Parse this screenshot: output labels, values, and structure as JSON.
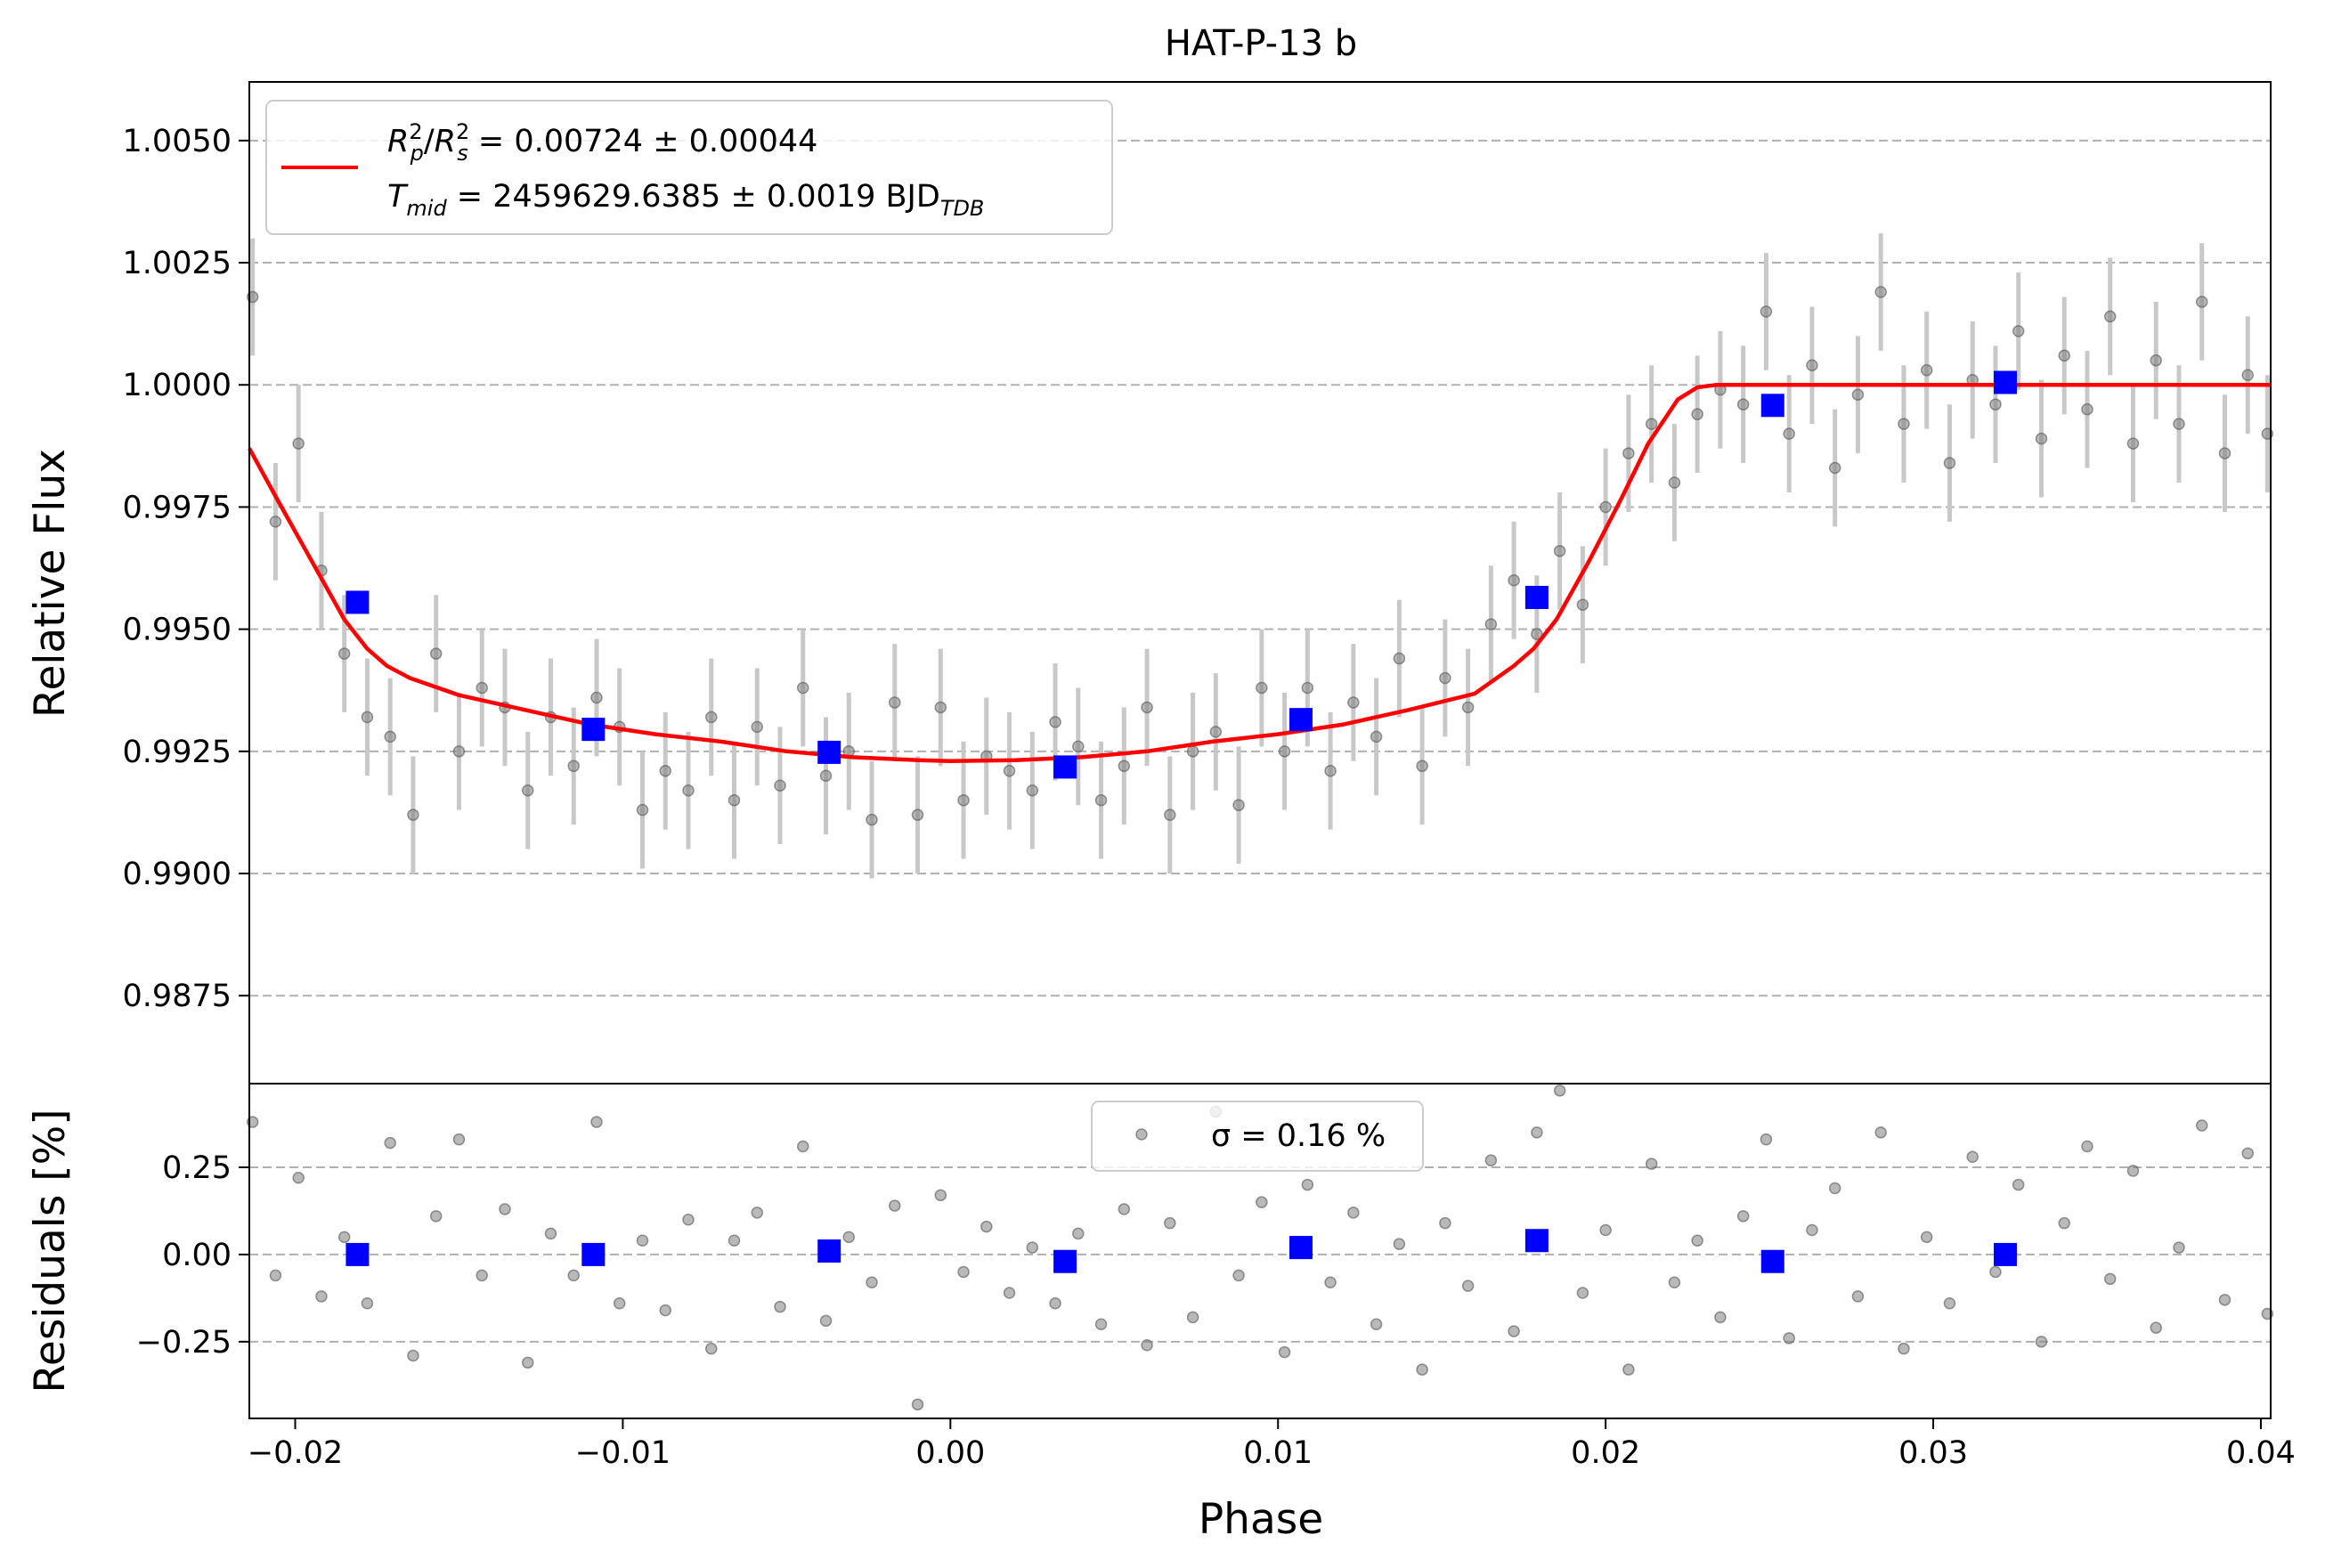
{
  "chart_data": [
    {
      "panel": "light-curve",
      "type": "scatter",
      "title": "HAT-P-13 b",
      "xlabel": "",
      "ylabel": "Relative Flux",
      "xlim": [
        -0.0214,
        0.0403
      ],
      "ylim": [
        0.9857,
        1.0062
      ],
      "grid": "horizontal-dashed",
      "legend_position": "top-left",
      "x_ticks": [
        "−0.02",
        "−0.01",
        "0.00",
        "0.01",
        "0.02",
        "0.03",
        "0.04"
      ],
      "x_tick_values": [
        -0.02,
        -0.01,
        0.0,
        0.01,
        0.02,
        0.03,
        0.04
      ],
      "y_ticks": [
        "0.9875",
        "0.9900",
        "0.9925",
        "0.9950",
        "0.9975",
        "1.0000",
        "1.0025",
        "1.0050"
      ],
      "y_tick_values": [
        0.9875,
        0.99,
        0.9925,
        0.995,
        0.9975,
        1.0,
        1.0025,
        1.005
      ],
      "legend": {
        "line1_parts": [
          {
            "t": "R",
            "style": "italic"
          },
          {
            "t": "2",
            "style": "sup"
          },
          {
            "t": "p",
            "style": "sub"
          },
          {
            "t": "/",
            "style": "normal"
          },
          {
            "t": "R",
            "style": "italic"
          },
          {
            "t": "2",
            "style": "sup"
          },
          {
            "t": "s",
            "style": "sub"
          },
          {
            "t": " = 0.00724 ± 0.00044",
            "style": "normal"
          }
        ],
        "line2_parts": [
          {
            "t": "T",
            "style": "italic"
          },
          {
            "t": "mid",
            "style": "sub"
          },
          {
            "t": " = 2459629.6385 ± 0.0019 BJD",
            "style": "normal"
          },
          {
            "t": "TDB",
            "style": "sub"
          }
        ]
      },
      "series": [
        {
          "name": "model",
          "kind": "line",
          "color": "#ff0000",
          "x": [
            -0.0214,
            -0.0205,
            -0.0195,
            -0.0185,
            -0.0178,
            -0.0172,
            -0.0165,
            -0.015,
            -0.013,
            -0.011,
            -0.009,
            -0.007,
            -0.005,
            -0.003,
            -0.001,
            0.0,
            0.002,
            0.004,
            0.006,
            0.008,
            0.01,
            0.012,
            0.014,
            0.016,
            0.0172,
            0.0178,
            0.0185,
            0.0195,
            0.0205,
            0.0213,
            0.0222,
            0.0228,
            0.0234,
            0.0245,
            0.03,
            0.0403
          ],
          "y": [
            0.9987,
            0.9976,
            0.9964,
            0.9952,
            0.9946,
            0.99425,
            0.994,
            0.99365,
            0.99335,
            0.99305,
            0.99285,
            0.9927,
            0.9925,
            0.99238,
            0.99232,
            0.9923,
            0.99232,
            0.99238,
            0.9925,
            0.9927,
            0.99285,
            0.99305,
            0.99335,
            0.99368,
            0.99425,
            0.9946,
            0.9952,
            0.9964,
            0.9977,
            0.9988,
            0.9997,
            0.99995,
            1.0,
            1.0,
            1.0,
            1.0
          ]
        },
        {
          "name": "binned",
          "kind": "points",
          "color": "#0000ff",
          "x": [
            -0.0181,
            -0.0109,
            -0.0037,
            0.0035,
            0.0107,
            0.0179,
            0.0251,
            0.0322
          ],
          "y": [
            0.99555,
            0.99295,
            0.99248,
            0.99218,
            0.99315,
            0.99565,
            0.99958,
            1.00005
          ],
          "yerr": [
            0.00015,
            0.00013,
            0.00012,
            0.00012,
            0.00012,
            0.00013,
            0.00013,
            0.00013
          ]
        },
        {
          "name": "data",
          "kind": "points",
          "color": "#808080",
          "x": [
            -0.0213,
            -0.0206,
            -0.0199,
            -0.0192,
            -0.0185,
            -0.0178,
            -0.0171,
            -0.0164,
            -0.0157,
            -0.015,
            -0.0143,
            -0.0136,
            -0.0129,
            -0.0122,
            -0.0115,
            -0.0108,
            -0.0101,
            -0.0094,
            -0.0087,
            -0.008,
            -0.0073,
            -0.0066,
            -0.0059,
            -0.0052,
            -0.0045,
            -0.0038,
            -0.0031,
            -0.0024,
            -0.0017,
            -0.001,
            -0.0003,
            0.0004,
            0.0011,
            0.0018,
            0.0025,
            0.0032,
            0.0039,
            0.0046,
            0.0053,
            0.006,
            0.0067,
            0.0074,
            0.0081,
            0.0088,
            0.0095,
            0.0102,
            0.0109,
            0.0116,
            0.0123,
            0.013,
            0.0137,
            0.0144,
            0.0151,
            0.0158,
            0.0165,
            0.0172,
            0.0179,
            0.0186,
            0.0193,
            0.02,
            0.0207,
            0.0214,
            0.0221,
            0.0228,
            0.0235,
            0.0242,
            0.0249,
            0.0256,
            0.0263,
            0.027,
            0.0277,
            0.0284,
            0.0291,
            0.0298,
            0.0305,
            0.0312,
            0.0319,
            0.0326,
            0.0333,
            0.034,
            0.0347,
            0.0354,
            0.0361,
            0.0368,
            0.0375,
            0.0382,
            0.0389,
            0.0396,
            0.0402
          ],
          "y": [
            1.0018,
            0.9972,
            0.9988,
            0.9962,
            0.9945,
            0.9932,
            0.9928,
            0.9912,
            0.9945,
            0.9925,
            0.9938,
            0.9934,
            0.9917,
            0.9932,
            0.9922,
            0.9936,
            0.993,
            0.9913,
            0.9921,
            0.9917,
            0.9932,
            0.9915,
            0.993,
            0.9918,
            0.9938,
            0.992,
            0.9925,
            0.9911,
            0.9935,
            0.9912,
            0.9934,
            0.9915,
            0.9924,
            0.9921,
            0.9917,
            0.9931,
            0.9926,
            0.9915,
            0.9922,
            0.9934,
            0.9912,
            0.9925,
            0.9929,
            0.9914,
            0.9938,
            0.9925,
            0.9938,
            0.9921,
            0.9935,
            0.9928,
            0.9944,
            0.9922,
            0.994,
            0.9934,
            0.9951,
            0.996,
            0.9949,
            0.9966,
            0.9955,
            0.9975,
            0.9986,
            0.9992,
            0.998,
            0.9994,
            0.9999,
            0.9996,
            1.0015,
            0.999,
            1.0004,
            0.9983,
            0.9998,
            1.0019,
            0.9992,
            1.0003,
            0.9984,
            1.0001,
            0.9996,
            1.0011,
            0.9989,
            1.0006,
            0.9995,
            1.0014,
            0.9988,
            1.0005,
            0.9992,
            1.0017,
            0.9986,
            1.0002,
            0.999
          ],
          "yerr": 0.0012
        }
      ]
    },
    {
      "panel": "residuals",
      "type": "scatter",
      "xlabel": "Phase",
      "ylabel": "Residuals [%]",
      "xlim": [
        -0.0214,
        0.0403
      ],
      "ylim": [
        -0.47,
        0.49
      ],
      "grid": "horizontal-dashed",
      "legend_position": "top-center",
      "legend_text": "σ = 0.16 %",
      "x_ticks": [
        "−0.02",
        "−0.01",
        "0.00",
        "0.01",
        "0.02",
        "0.03",
        "0.04"
      ],
      "x_tick_values": [
        -0.02,
        -0.01,
        0.0,
        0.01,
        0.02,
        0.03,
        0.04
      ],
      "y_ticks": [
        "−0.25",
        "0.00",
        "0.25"
      ],
      "y_tick_values": [
        -0.25,
        0.0,
        0.25
      ],
      "series": [
        {
          "name": "binned",
          "kind": "points",
          "color": "#0000ff",
          "x": [
            -0.0181,
            -0.0109,
            -0.0037,
            0.0035,
            0.0107,
            0.0179,
            0.0251,
            0.0322
          ],
          "y": [
            0.0,
            0.0,
            0.01,
            -0.02,
            0.02,
            0.04,
            -0.02,
            0.0
          ]
        },
        {
          "name": "data",
          "kind": "points",
          "color": "#808080",
          "x": [
            -0.0213,
            -0.0206,
            -0.0199,
            -0.0192,
            -0.0185,
            -0.0178,
            -0.0171,
            -0.0164,
            -0.0157,
            -0.015,
            -0.0143,
            -0.0136,
            -0.0129,
            -0.0122,
            -0.0115,
            -0.0108,
            -0.0101,
            -0.0094,
            -0.0087,
            -0.008,
            -0.0073,
            -0.0066,
            -0.0059,
            -0.0052,
            -0.0045,
            -0.0038,
            -0.0031,
            -0.0024,
            -0.0017,
            -0.001,
            -0.0003,
            0.0004,
            0.0011,
            0.0018,
            0.0025,
            0.0032,
            0.0039,
            0.0046,
            0.0053,
            0.006,
            0.0067,
            0.0074,
            0.0081,
            0.0088,
            0.0095,
            0.0102,
            0.0109,
            0.0116,
            0.0123,
            0.013,
            0.0137,
            0.0144,
            0.0151,
            0.0158,
            0.0165,
            0.0172,
            0.0179,
            0.0186,
            0.0193,
            0.02,
            0.0207,
            0.0214,
            0.0221,
            0.0228,
            0.0235,
            0.0242,
            0.0249,
            0.0256,
            0.0263,
            0.027,
            0.0277,
            0.0284,
            0.0291,
            0.0298,
            0.0305,
            0.0312,
            0.0319,
            0.0326,
            0.0333,
            0.034,
            0.0347,
            0.0354,
            0.0361,
            0.0368,
            0.0375,
            0.0382,
            0.0389,
            0.0396,
            0.0402
          ],
          "y": [
            0.38,
            -0.06,
            0.22,
            -0.12,
            0.05,
            -0.14,
            0.32,
            -0.29,
            0.11,
            0.33,
            -0.06,
            0.13,
            -0.31,
            0.06,
            -0.06,
            0.38,
            -0.14,
            0.04,
            -0.16,
            0.1,
            -0.27,
            0.04,
            0.12,
            -0.15,
            0.31,
            -0.19,
            0.05,
            -0.08,
            0.14,
            -0.43,
            0.17,
            -0.05,
            0.08,
            -0.11,
            0.02,
            -0.14,
            0.06,
            -0.2,
            0.13,
            -0.26,
            0.09,
            -0.18,
            0.41,
            -0.06,
            0.15,
            -0.28,
            0.2,
            -0.08,
            0.12,
            -0.2,
            0.03,
            -0.33,
            0.09,
            -0.09,
            0.27,
            -0.22,
            0.35,
            0.47,
            -0.11,
            0.07,
            -0.33,
            0.26,
            -0.08,
            0.04,
            -0.18,
            0.11,
            0.33,
            -0.24,
            0.07,
            0.19,
            -0.12,
            0.35,
            -0.27,
            0.05,
            -0.14,
            0.28,
            -0.05,
            0.2,
            -0.25,
            0.09,
            0.31,
            -0.07,
            0.24,
            -0.21,
            0.02,
            0.37,
            -0.13,
            0.29,
            -0.17
          ]
        }
      ]
    }
  ]
}
